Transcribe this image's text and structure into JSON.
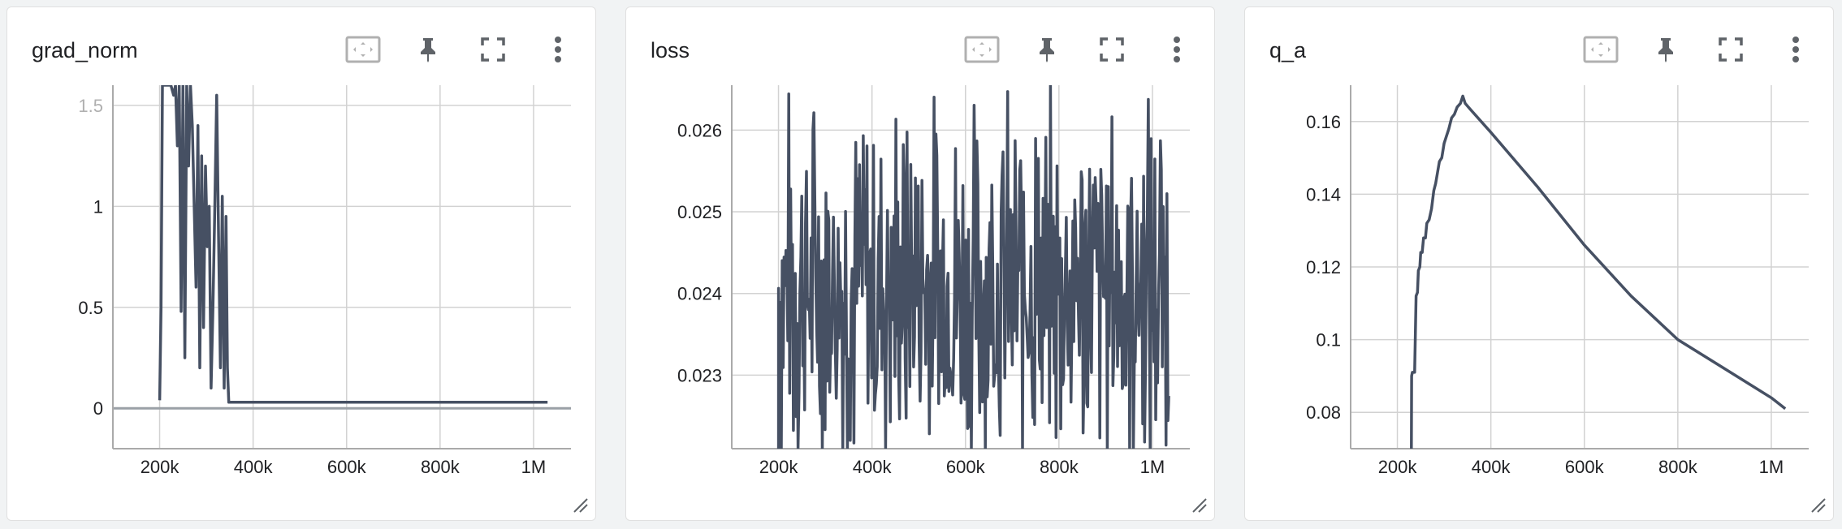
{
  "colors": {
    "line": "#465063",
    "grid": "#d2d2d2",
    "axis": "#aaaaaa",
    "tick": "#202124",
    "icon": "#5f6368"
  },
  "toolbar": [
    "fit-domain-icon",
    "pin-icon",
    "fullscreen-icon",
    "more-vert-icon"
  ],
  "chart_data": [
    {
      "type": "line",
      "title": "grad_norm",
      "xlim": [
        100000,
        1080000
      ],
      "ylim": [
        -0.2,
        1.6
      ],
      "xticks": [
        200000,
        400000,
        600000,
        800000,
        1000000
      ],
      "xtick_labels": [
        "200k",
        "400k",
        "600k",
        "800k",
        "1M"
      ],
      "yticks": [
        0,
        0.5,
        1,
        1.5
      ],
      "ytick_labels": [
        "0",
        "0.5",
        "1",
        "1.5"
      ],
      "faded_yticks": [
        1.5
      ],
      "baseline": 0,
      "series": [
        {
          "name": "grad_norm",
          "x": [
            200000,
            203000,
            206000,
            210000,
            214000,
            219000,
            224000,
            230000,
            234000,
            238000,
            242000,
            246000,
            250000,
            254000,
            258000,
            262000,
            266000,
            270000,
            274000,
            278000,
            282000,
            286000,
            290000,
            294000,
            298000,
            302000,
            306000,
            310000,
            314000,
            318000,
            322000,
            326000,
            330000,
            334000,
            338000,
            342000,
            345000,
            348000,
            400000,
            500000,
            600000,
            700000,
            800000,
            900000,
            1000000,
            1030000
          ],
          "y": [
            0.04,
            0.5,
            1.6,
            1.6,
            1.6,
            1.6,
            1.6,
            1.55,
            1.6,
            1.3,
            1.6,
            0.48,
            1.6,
            0.25,
            1.6,
            1.2,
            1.6,
            1.4,
            1.0,
            0.6,
            1.4,
            0.2,
            1.25,
            0.4,
            1.2,
            0.8,
            1.0,
            0.1,
            0.5,
            1.0,
            1.55,
            0.85,
            0.2,
            1.05,
            0.1,
            0.95,
            0.2,
            0.03,
            0.03,
            0.03,
            0.03,
            0.03,
            0.03,
            0.03,
            0.03,
            0.03
          ]
        }
      ]
    },
    {
      "type": "line",
      "title": "loss",
      "xlim": [
        100000,
        1080000
      ],
      "ylim": [
        0.0221,
        0.02655
      ],
      "xticks": [
        200000,
        400000,
        600000,
        800000,
        1000000
      ],
      "xtick_labels": [
        "200k",
        "400k",
        "600k",
        "800k",
        "1M"
      ],
      "yticks": [
        0.022,
        0.023,
        0.024,
        0.025,
        0.026
      ],
      "ytick_labels": [
        "0.022",
        "0.023",
        "0.024",
        "0.025",
        "0.026"
      ],
      "faded_yticks": [
        0.022
      ],
      "series": [
        {
          "name": "loss",
          "x_start": 200000,
          "x_end": 1035000,
          "noise_seed": 7,
          "y_center": 0.0241,
          "y_amplitude": 0.0016,
          "y_min": 0.0221,
          "y_max": 0.02655
        }
      ]
    },
    {
      "type": "line",
      "title": "q_a",
      "xlim": [
        100000,
        1080000
      ],
      "ylim": [
        0.07,
        0.17
      ],
      "xticks": [
        200000,
        400000,
        600000,
        800000,
        1000000
      ],
      "xtick_labels": [
        "200k",
        "400k",
        "600k",
        "800k",
        "1M"
      ],
      "yticks": [
        0.08,
        0.1,
        0.12,
        0.14,
        0.16
      ],
      "ytick_labels": [
        "0.08",
        "0.1",
        "0.12",
        "0.14",
        "0.16"
      ],
      "series": [
        {
          "name": "q_a",
          "x": [
            230000,
            230500,
            232000,
            237000,
            240000,
            243000,
            245000,
            248000,
            250000,
            253000,
            256000,
            260000,
            263000,
            268000,
            273000,
            278000,
            282000,
            286000,
            290000,
            295000,
            300000,
            305000,
            310000,
            316000,
            322000,
            328000,
            335000,
            340000,
            345000,
            355000,
            400000,
            500000,
            600000,
            700000,
            800000,
            900000,
            1000000,
            1030000
          ],
          "y": [
            0.07,
            0.09,
            0.091,
            0.091,
            0.112,
            0.113,
            0.119,
            0.12,
            0.124,
            0.124,
            0.128,
            0.128,
            0.132,
            0.133,
            0.136,
            0.141,
            0.143,
            0.146,
            0.149,
            0.15,
            0.154,
            0.156,
            0.158,
            0.161,
            0.162,
            0.164,
            0.165,
            0.167,
            0.165,
            0.1635,
            0.157,
            0.142,
            0.126,
            0.112,
            0.1,
            0.092,
            0.084,
            0.081
          ]
        }
      ]
    }
  ]
}
